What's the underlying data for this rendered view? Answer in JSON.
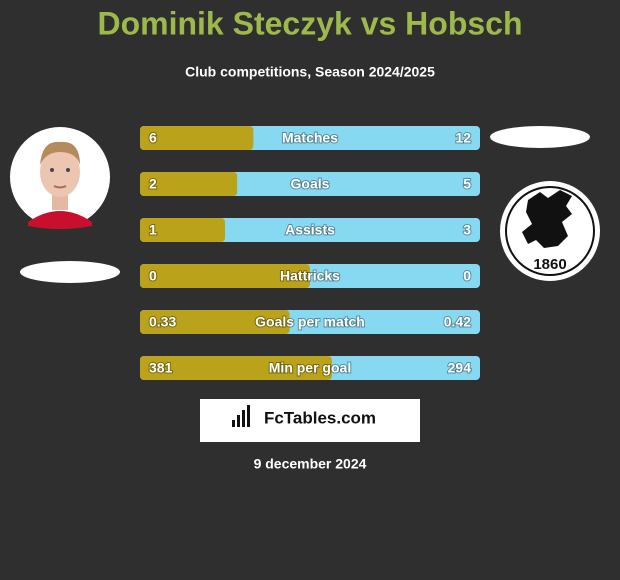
{
  "header": {
    "title": "Dominik Steczyk vs Hobsch",
    "subtitle": "Club competitions, Season 2024/2025"
  },
  "stats": {
    "rows": [
      {
        "label": "Matches",
        "left": 6,
        "right": 12
      },
      {
        "label": "Goals",
        "left": 2,
        "right": 5
      },
      {
        "label": "Assists",
        "left": 1,
        "right": 3
      },
      {
        "label": "Hattricks",
        "left": 0,
        "right": 0
      },
      {
        "label": "Goals per match",
        "left": 0.33,
        "right": 0.42
      },
      {
        "label": "Min per goal",
        "left": 381,
        "right": 294
      }
    ]
  },
  "club_badge": {
    "text": "1860"
  },
  "footer": {
    "logo": "FcTables.com",
    "date": "9 december 2024"
  }
}
